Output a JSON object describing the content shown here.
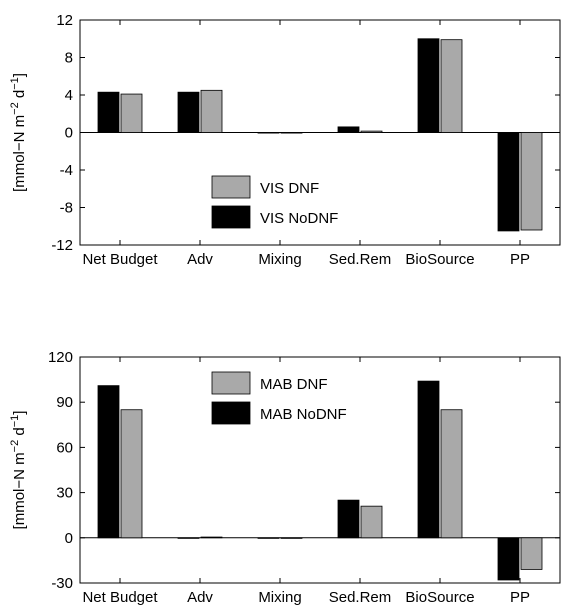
{
  "chart_data": [
    {
      "type": "bar",
      "categories": [
        "Net Budget",
        "Adv",
        "Mixing",
        "Sed.Rem",
        "BioSource",
        "PP"
      ],
      "series": [
        {
          "name": "VIS NoDNF",
          "color": "#000000",
          "values": [
            4.3,
            4.3,
            0.0,
            0.6,
            10.0,
            -10.5
          ]
        },
        {
          "name": "VIS DNF",
          "color": "#a9a9a9",
          "values": [
            4.1,
            4.5,
            0.0,
            0.15,
            9.9,
            -10.4
          ]
        }
      ],
      "ylabel_main": "[mmol−N m",
      "ylabel_exp1": "−2",
      "ylabel_mid": " d",
      "ylabel_exp2": "−1",
      "ylabel_end": "]",
      "ylim": [
        -12,
        12
      ],
      "yticks": [
        "12",
        "8",
        "4",
        "0",
        "-4",
        "-8",
        "-12"
      ],
      "ytick_values": [
        12,
        8,
        4,
        0,
        -4,
        -8,
        -12
      ],
      "legend": "bottom-center"
    },
    {
      "type": "bar",
      "categories": [
        "Net Budget",
        "Adv",
        "Mixing",
        "Sed.Rem",
        "BioSource",
        "PP"
      ],
      "series": [
        {
          "name": "MAB NoDNF",
          "color": "#000000",
          "values": [
            101,
            0.0,
            0.0,
            25,
            104,
            -28
          ]
        },
        {
          "name": "MAB DNF",
          "color": "#a9a9a9",
          "values": [
            85,
            0.5,
            0.0,
            21,
            85,
            -21
          ]
        }
      ],
      "ylabel_main": "[mmol−N m",
      "ylabel_exp1": "−2",
      "ylabel_mid": " d",
      "ylabel_exp2": "−1",
      "ylabel_end": "]",
      "ylim": [
        -30,
        120
      ],
      "yticks": [
        "120",
        "90",
        "60",
        "30",
        "0",
        "-30"
      ],
      "ytick_values": [
        120,
        90,
        60,
        30,
        0,
        -30
      ],
      "legend": "top-center"
    }
  ]
}
